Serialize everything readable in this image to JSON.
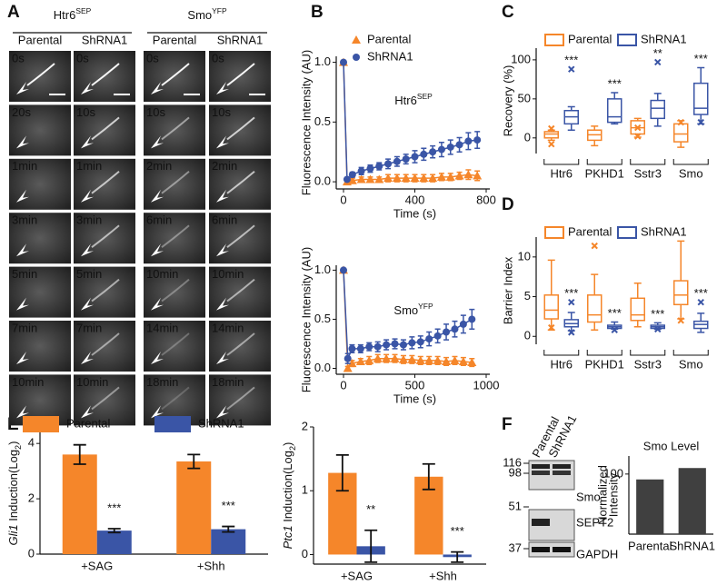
{
  "panel_labels": [
    "A",
    "B",
    "C",
    "D",
    "E",
    "F"
  ],
  "micrographs": {
    "groups": [
      {
        "title": [
          "Htr6",
          "SEP"
        ],
        "columns": [
          {
            "label": "Parental",
            "times": [
              "0s",
              "20s",
              "1min",
              "3min",
              "5min",
              "7min",
              "10min"
            ]
          },
          {
            "label": "ShRNA1",
            "times": [
              "0s",
              "10s",
              "1min",
              "3min",
              "5min",
              "7min",
              "10min"
            ]
          }
        ]
      },
      {
        "title": [
          "Smo",
          "YFP"
        ],
        "columns": [
          {
            "label": "Parental",
            "times": [
              "0s",
              "10s",
              "2min",
              "6min",
              "10min",
              "14min",
              "18min"
            ]
          },
          {
            "label": "ShRNA1",
            "times": [
              "0s",
              "10s",
              "2min",
              "6min",
              "10min",
              "14min",
              "18min"
            ]
          }
        ]
      }
    ]
  },
  "chart_data": [
    {
      "type": "line",
      "annotation": [
        "Htr6",
        "SEP"
      ],
      "xlabel": "Time (s)",
      "ylabel": "Fluorescence Intensity (AU)",
      "x": [
        0,
        20,
        50,
        100,
        150,
        200,
        250,
        300,
        350,
        400,
        450,
        500,
        550,
        600,
        650,
        700,
        750
      ],
      "xlim": [
        0,
        800
      ],
      "xticks": [
        0,
        400,
        800
      ],
      "ylim": [
        -0.06,
        1.05
      ],
      "yticks": [
        {
          "value": 0,
          "label": "0.0"
        },
        {
          "value": 0.5,
          "label": "0.5"
        },
        {
          "value": 1,
          "label": "1.0"
        }
      ],
      "series": [
        {
          "name": "Parental",
          "color": "#f5862a",
          "marker": "triangle",
          "values": [
            1.0,
            0.0,
            0.01,
            0.02,
            0.02,
            0.02,
            0.03,
            0.03,
            0.03,
            0.03,
            0.03,
            0.03,
            0.04,
            0.04,
            0.05,
            0.06,
            0.05
          ],
          "errors": [
            0,
            0.01,
            0.02,
            0.02,
            0.02,
            0.02,
            0.03,
            0.03,
            0.03,
            0.03,
            0.03,
            0.03,
            0.03,
            0.03,
            0.03,
            0.04,
            0.04
          ]
        },
        {
          "name": "ShRNA1",
          "color": "#3a55a6",
          "marker": "circle",
          "values": [
            1.0,
            0.02,
            0.06,
            0.09,
            0.11,
            0.13,
            0.15,
            0.17,
            0.19,
            0.21,
            0.23,
            0.25,
            0.27,
            0.29,
            0.31,
            0.34,
            0.35
          ],
          "errors": [
            0,
            0.01,
            0.02,
            0.03,
            0.03,
            0.03,
            0.04,
            0.04,
            0.04,
            0.05,
            0.05,
            0.05,
            0.06,
            0.06,
            0.06,
            0.07,
            0.07
          ]
        }
      ]
    },
    {
      "type": "line",
      "annotation": [
        "Smo",
        "YFP"
      ],
      "xlabel": "Time (s)",
      "ylabel": "Fluorescence Intensity (AU)",
      "x": [
        0,
        30,
        60,
        120,
        180,
        240,
        300,
        360,
        420,
        480,
        540,
        600,
        660,
        720,
        780,
        840,
        900
      ],
      "xlim": [
        0,
        1000
      ],
      "xticks": [
        0,
        500,
        1000
      ],
      "ylim": [
        -0.06,
        1.05
      ],
      "yticks": [
        {
          "value": 0,
          "label": "0.0"
        },
        {
          "value": 0.5,
          "label": "0.5"
        },
        {
          "value": 1,
          "label": "1.0"
        }
      ],
      "series": [
        {
          "color": "#f5862a",
          "marker": "triangle",
          "values": [
            1.0,
            0.0,
            0.05,
            0.07,
            0.08,
            0.1,
            0.1,
            0.1,
            0.09,
            0.09,
            0.08,
            0.08,
            0.08,
            0.07,
            0.08,
            0.07,
            0.06
          ],
          "errors": [
            0,
            0.02,
            0.03,
            0.03,
            0.04,
            0.04,
            0.04,
            0.04,
            0.04,
            0.04,
            0.04,
            0.04,
            0.04,
            0.04,
            0.04,
            0.04,
            0.04
          ]
        },
        {
          "color": "#3a55a6",
          "marker": "circle",
          "values": [
            1.0,
            0.1,
            0.2,
            0.2,
            0.22,
            0.22,
            0.24,
            0.25,
            0.24,
            0.26,
            0.27,
            0.3,
            0.33,
            0.37,
            0.4,
            0.45,
            0.5
          ],
          "errors": [
            0,
            0.05,
            0.04,
            0.04,
            0.04,
            0.05,
            0.05,
            0.05,
            0.05,
            0.06,
            0.06,
            0.07,
            0.07,
            0.08,
            0.08,
            0.09,
            0.1
          ]
        }
      ]
    },
    {
      "type": "box",
      "ylabel": "Recovery (%)",
      "categories": [
        "Htr6",
        "PKHD1",
        "Sstr3",
        "Smo"
      ],
      "ylim": [
        -20,
        115
      ],
      "yticks": [
        0,
        50,
        100
      ],
      "series": [
        {
          "name": "Parental",
          "color": "#f5862a",
          "boxes": [
            {
              "whislo": -3,
              "q1": 0,
              "med": 5,
              "q3": 8,
              "whishi": 10,
              "fliers": [
                -8,
                12
              ]
            },
            {
              "whislo": -10,
              "q1": -3,
              "med": 4,
              "q3": 10,
              "whishi": 15,
              "fliers": []
            },
            {
              "whislo": 1,
              "q1": 5,
              "med": 13,
              "q3": 22,
              "whishi": 25,
              "fliers": [
                2,
                13
              ]
            },
            {
              "whislo": -12,
              "q1": -5,
              "med": 5,
              "q3": 18,
              "whishi": 22,
              "fliers": [
                20
              ]
            }
          ]
        },
        {
          "name": "ShRNA1",
          "color": "#3a55a6",
          "boxes": [
            {
              "whislo": 10,
              "q1": 18,
              "med": 27,
              "q3": 35,
              "whishi": 40,
              "fliers": [
                88
              ]
            },
            {
              "whislo": 18,
              "q1": 20,
              "med": 27,
              "q3": 50,
              "whishi": 58,
              "fliers": []
            },
            {
              "whislo": 15,
              "q1": 25,
              "med": 38,
              "q3": 48,
              "whishi": 57,
              "fliers": [
                97
              ]
            },
            {
              "whislo": 18,
              "q1": 30,
              "med": 38,
              "q3": 70,
              "whishi": 90,
              "fliers": [
                20
              ]
            }
          ]
        }
      ],
      "annotations": [
        "***",
        "***",
        "**",
        "***"
      ]
    },
    {
      "type": "box",
      "ylabel": "Barrier Index",
      "categories": [
        "Htr6",
        "PKHD1",
        "Sstr3",
        "Smo"
      ],
      "ylim": [
        -1,
        12.5
      ],
      "yticks": [
        0,
        5,
        10
      ],
      "series": [
        {
          "name": "Parental",
          "color": "#f5862a",
          "boxes": [
            {
              "whislo": 0.8,
              "q1": 2.2,
              "med": 3.3,
              "q3": 5.2,
              "whishi": 9.6,
              "fliers": [
                1.1
              ]
            },
            {
              "whislo": 0.8,
              "q1": 1.8,
              "med": 2.7,
              "q3": 5.2,
              "whishi": 7.8,
              "fliers": [
                11.4
              ]
            },
            {
              "whislo": 1.2,
              "q1": 2.0,
              "med": 2.7,
              "q3": 4.8,
              "whishi": 6.7,
              "fliers": []
            },
            {
              "whislo": 2.2,
              "q1": 4.0,
              "med": 5.2,
              "q3": 7.0,
              "whishi": 12.0,
              "fliers": [
                2.0
              ]
            }
          ]
        },
        {
          "name": "ShRNA1",
          "color": "#3a55a6",
          "boxes": [
            {
              "whislo": 0.7,
              "q1": 1.2,
              "med": 1.6,
              "q3": 2.1,
              "whishi": 3.0,
              "fliers": [
                4.3,
                0.5
              ]
            },
            {
              "whislo": 0.9,
              "q1": 1.0,
              "med": 1.2,
              "q3": 1.4,
              "whishi": 1.8,
              "fliers": [
                0.8
              ]
            },
            {
              "whislo": 0.9,
              "q1": 1.0,
              "med": 1.2,
              "q3": 1.4,
              "whishi": 1.7,
              "fliers": [
                0.9
              ]
            },
            {
              "whislo": 0.5,
              "q1": 1.0,
              "med": 1.5,
              "q3": 1.9,
              "whishi": 2.9,
              "fliers": [
                4.3
              ]
            }
          ]
        }
      ],
      "annotations": [
        "***",
        "***",
        "***",
        "***"
      ]
    },
    {
      "type": "bar",
      "ylabel": [
        "Gli1",
        " Induction(Log",
        "2",
        ")"
      ],
      "categories": [
        "+SAG",
        "+Shh"
      ],
      "ylim": [
        0,
        4.4
      ],
      "yticks": [
        0,
        2,
        4
      ],
      "series": [
        {
          "name": "Parental",
          "color": "#f5862a",
          "values": [
            3.6,
            3.35
          ],
          "errors": [
            0.35,
            0.25
          ]
        },
        {
          "name": "ShRNA1",
          "color": "#3a55a6",
          "values": [
            0.85,
            0.9
          ],
          "errors": [
            0.07,
            0.1
          ]
        }
      ],
      "annotations": [
        "***",
        "***"
      ]
    },
    {
      "type": "bar",
      "ylabel": [
        "Ptc1",
        " Induction(Log",
        "2",
        ")"
      ],
      "categories": [
        "+SAG",
        "+Shh"
      ],
      "ylim": [
        -0.15,
        2
      ],
      "yticks": [
        0,
        1,
        2
      ],
      "series": [
        {
          "color": "#f5862a",
          "values": [
            1.28,
            1.22
          ],
          "errors": [
            0.28,
            0.2
          ]
        },
        {
          "color": "#3a55a6",
          "values": [
            0.13,
            -0.04
          ],
          "errors": [
            0.25,
            0.08
          ]
        }
      ],
      "annotations": [
        "**",
        "***"
      ]
    },
    {
      "type": "bar",
      "title": "Smo Level",
      "ylabel": [
        "Normalized",
        "Intensity"
      ],
      "categories": [
        "Parental",
        "ShRNA1"
      ],
      "values": [
        91,
        110
      ],
      "color": "#404040",
      "ylim": [
        0,
        130
      ],
      "yticks": [
        100
      ]
    }
  ],
  "blot": {
    "lanes": [
      "Parental",
      "ShRNA1"
    ],
    "markers": [
      116,
      98,
      51,
      37
    ],
    "bands": [
      "Smo",
      "SEPT2",
      "GAPDH"
    ]
  }
}
